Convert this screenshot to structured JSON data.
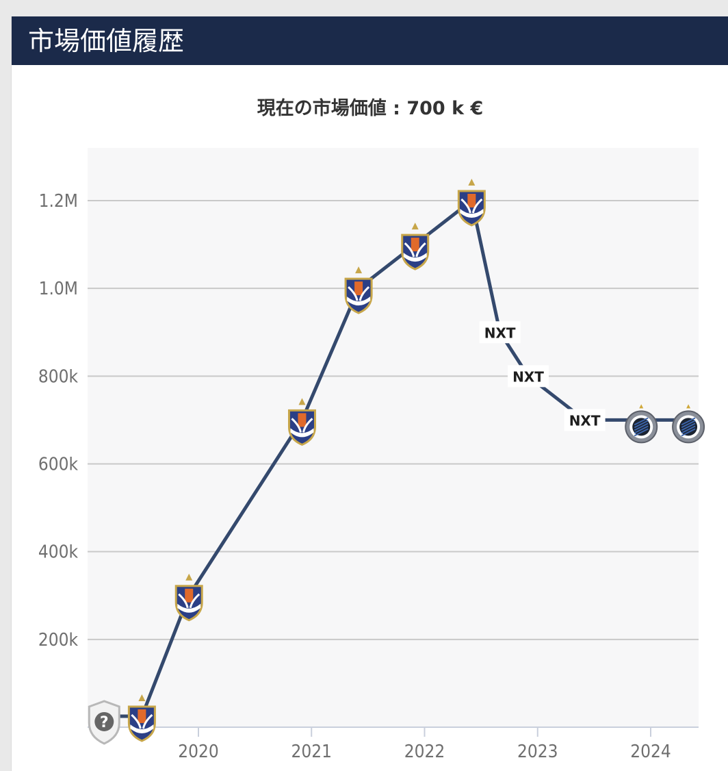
{
  "header": {
    "title": "市場価値履歴"
  },
  "summary": {
    "label": "現在の市場価値 :",
    "value": "700 k €"
  },
  "colors": {
    "header_bg": "#1b2a4a",
    "line": "#34496d",
    "plot_bg": "#f7f7f8",
    "grid": "#c9c9c9",
    "club_a_blue": "#2b3f86",
    "club_a_orange": "#e06a2b",
    "club_c_dark": "#1c2431"
  },
  "chart_data": {
    "type": "line",
    "title": "",
    "xlabel": "",
    "ylabel": "",
    "x_tick_labels": [
      "2020",
      "2021",
      "2022",
      "2023",
      "2024"
    ],
    "y_tick_labels": [
      "200k",
      "400k",
      "600k",
      "800k",
      "1.0M",
      "1.2M"
    ],
    "ylim": [
      0,
      1300000
    ],
    "grid": true,
    "series": [
      {
        "points": [
          {
            "date": "2019-03",
            "value": 25000,
            "club_icon": "unknown-club-icon"
          },
          {
            "date": "2019-07",
            "value": 25000,
            "club_icon": "club-a-crest-icon"
          },
          {
            "date": "2019-12",
            "value": 300000,
            "club_icon": "club-a-crest-icon"
          },
          {
            "date": "2020-12",
            "value": 700000,
            "club_icon": "club-a-crest-icon"
          },
          {
            "date": "2021-06",
            "value": 1000000,
            "club_icon": "club-a-crest-icon"
          },
          {
            "date": "2021-12",
            "value": 1100000,
            "club_icon": "club-a-crest-icon"
          },
          {
            "date": "2022-06",
            "value": 1200000,
            "club_icon": "club-a-crest-icon"
          },
          {
            "date": "2022-09",
            "value": 900000,
            "club_icon": "club-nxt-logo-icon",
            "club_label": "NXT"
          },
          {
            "date": "2022-12",
            "value": 800000,
            "club_icon": "club-nxt-logo-icon",
            "club_label": "NXT"
          },
          {
            "date": "2023-06",
            "value": 700000,
            "club_icon": "club-nxt-logo-icon",
            "club_label": "NXT"
          },
          {
            "date": "2023-12",
            "value": 700000,
            "club_icon": "club-brugge-crest-icon"
          },
          {
            "date": "2024-05",
            "value": 700000,
            "club_icon": "club-brugge-crest-icon"
          }
        ]
      }
    ]
  }
}
